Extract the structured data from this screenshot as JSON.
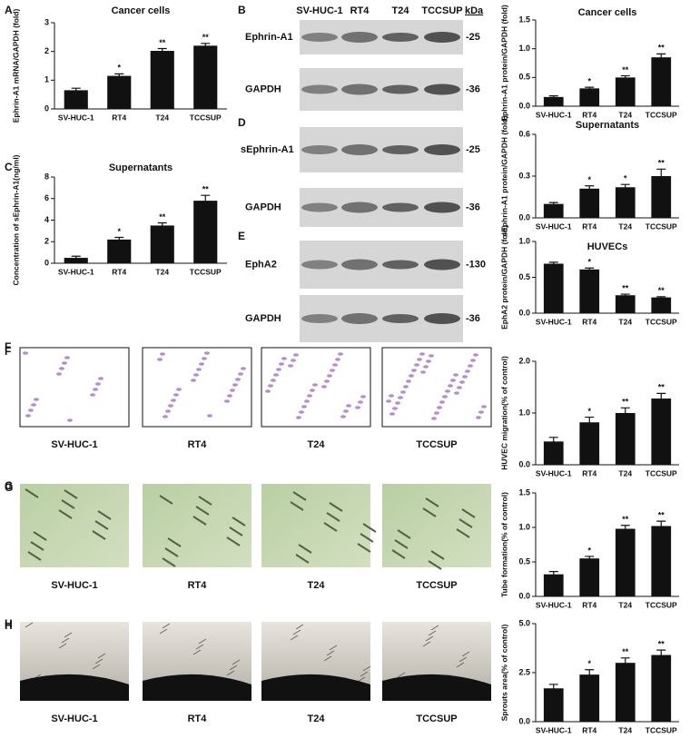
{
  "chart_data": [
    {
      "type": "bar",
      "panel": "A",
      "title": "Cancer cells",
      "y_label": "Ephrin-A1 mRNA/GAPDH (fold)",
      "categories": [
        "SV-HUC-1",
        "RT4",
        "T24",
        "TCCSUP"
      ],
      "values": [
        0.65,
        1.15,
        2.02,
        2.2
      ],
      "errors": [
        0.07,
        0.07,
        0.08,
        0.08
      ],
      "significance": [
        null,
        "*",
        "**",
        "**"
      ],
      "color": "#111111",
      "ylim": [
        0,
        3
      ],
      "yticks": [
        0,
        1,
        2,
        3
      ]
    },
    {
      "type": "bar",
      "panel": "C",
      "title": "Supernatants",
      "y_label": "Concentration of sEphrin-A1(ng/ml)",
      "categories": [
        "SV-HUC-1",
        "RT4",
        "T24",
        "TCCSUP"
      ],
      "values": [
        0.5,
        2.2,
        3.5,
        5.8
      ],
      "errors": [
        0.15,
        0.2,
        0.25,
        0.5
      ],
      "significance": [
        null,
        "*",
        "**",
        "**"
      ],
      "color": "#111111",
      "ylim": [
        0,
        8
      ],
      "yticks": [
        0,
        2,
        4,
        6,
        8
      ]
    },
    {
      "type": "bar",
      "title": "Cancer cells",
      "y_label": "Ephrin-A1 protein/GAPDH (fold)",
      "categories": [
        "SV-HUC-1",
        "RT4",
        "T24",
        "TCCSUP"
      ],
      "values": [
        0.16,
        0.31,
        0.5,
        0.85
      ],
      "errors": [
        0.02,
        0.02,
        0.03,
        0.06
      ],
      "significance": [
        null,
        "*",
        "**",
        "**"
      ],
      "color": "#111111",
      "ylim": [
        0,
        1.5
      ],
      "yticks": [
        {
          "value": 0,
          "label": "0.0"
        },
        0.5,
        {
          "value": 1,
          "label": "1.0"
        },
        1.5
      ]
    },
    {
      "type": "bar",
      "title": "Supernatants",
      "y_label": "sEphrin-A1 protein/GAPDH (fold)",
      "categories": [
        "SV-HUC-1",
        "RT4",
        "T24",
        "TCCSUP"
      ],
      "values": [
        0.1,
        0.21,
        0.22,
        0.3
      ],
      "errors": [
        0.01,
        0.02,
        0.02,
        0.05
      ],
      "significance": [
        null,
        "*",
        "*",
        "**"
      ],
      "color": "#111111",
      "ylim": [
        0,
        0.6
      ],
      "yticks": [
        {
          "value": 0,
          "label": "0.0"
        },
        0.3,
        0.6
      ]
    },
    {
      "type": "bar",
      "title": "HUVECs",
      "y_label": "EphA2 protein/GAPDH (fold)",
      "categories": [
        "SV-HUC-1",
        "RT4",
        "T24",
        "TCCSUP"
      ],
      "values": [
        0.69,
        0.61,
        0.25,
        0.22
      ],
      "errors": [
        0.02,
        0.02,
        0.015,
        0.01
      ],
      "significance": [
        null,
        "*",
        "**",
        "**"
      ],
      "color": "#111111",
      "ylim": [
        0,
        1
      ],
      "yticks": [
        {
          "value": 0,
          "label": "0.0"
        },
        0.5,
        {
          "value": 1,
          "label": "1.0"
        }
      ]
    },
    {
      "type": "bar",
      "panel": "F",
      "y_label": "HUVEC migration(% of control)",
      "categories": [
        "SV-HUC-1",
        "RT4",
        "T24",
        "TCCSUP"
      ],
      "values": [
        0.45,
        0.82,
        1.0,
        1.28
      ],
      "errors": [
        0.08,
        0.1,
        0.1,
        0.1
      ],
      "significance": [
        null,
        "*",
        "**",
        "**"
      ],
      "color": "#111111",
      "ylim": [
        0,
        2
      ],
      "yticks": [
        {
          "value": 0,
          "label": "0.0"
        },
        {
          "value": 1,
          "label": "1.0"
        },
        {
          "value": 2,
          "label": "2.0"
        }
      ]
    },
    {
      "type": "bar",
      "panel": "G",
      "y_label": "Tube formation(% of control)",
      "categories": [
        "SV-HUC-1",
        "RT4",
        "T24",
        "TCCSUP"
      ],
      "values": [
        0.32,
        0.55,
        0.98,
        1.02
      ],
      "errors": [
        0.04,
        0.03,
        0.05,
        0.07
      ],
      "significance": [
        null,
        "*",
        "**",
        "**"
      ],
      "color": "#111111",
      "ylim": [
        0,
        1.5
      ],
      "yticks": [
        {
          "value": 0,
          "label": "0.0"
        },
        0.5,
        {
          "value": 1,
          "label": "1.0"
        },
        1.5
      ]
    },
    {
      "type": "bar",
      "panel": "H",
      "y_label": "Sprouts area(% of control)",
      "categories": [
        "SV-HUC-1",
        "RT4",
        "T24",
        "TCCSUP"
      ],
      "values": [
        1.7,
        2.4,
        3.0,
        3.4
      ],
      "errors": [
        0.2,
        0.25,
        0.25,
        0.25
      ],
      "significance": [
        null,
        "*",
        "**",
        "**"
      ],
      "color": "#111111",
      "ylim": [
        0,
        5
      ],
      "yticks": [
        {
          "value": 0,
          "label": "0.0"
        },
        2.5,
        {
          "value": 5,
          "label": "5.0"
        }
      ]
    }
  ],
  "blots": [
    {
      "panel": "B",
      "lanes": [
        "SV-HUC-1",
        "RT4",
        "T24",
        "TCCSUP"
      ],
      "kda_header": "kDa",
      "rows": [
        {
          "label": "Ephrin-A1",
          "kda": "-25"
        },
        {
          "label": "GAPDH",
          "kda": "-36"
        }
      ]
    },
    {
      "panel": "D",
      "rows": [
        {
          "label": "sEphrin-A1",
          "kda": "-25"
        },
        {
          "label": "GAPDH",
          "kda": "-36"
        }
      ]
    },
    {
      "panel": "E",
      "rows": [
        {
          "label": "EphA2",
          "kda": "-130"
        },
        {
          "label": "GAPDH",
          "kda": "-36"
        }
      ]
    }
  ],
  "image_rows": [
    {
      "panel": "F",
      "captions": [
        "SV-HUC-1",
        "RT4",
        "T24",
        "TCCSUP"
      ]
    },
    {
      "panel": "G",
      "captions": [
        "SV-HUC-1",
        "RT4",
        "T24",
        "TCCSUP"
      ]
    },
    {
      "panel": "H",
      "captions": [
        "SV-HUC-1",
        "RT4",
        "T24",
        "TCCSUP"
      ]
    }
  ]
}
